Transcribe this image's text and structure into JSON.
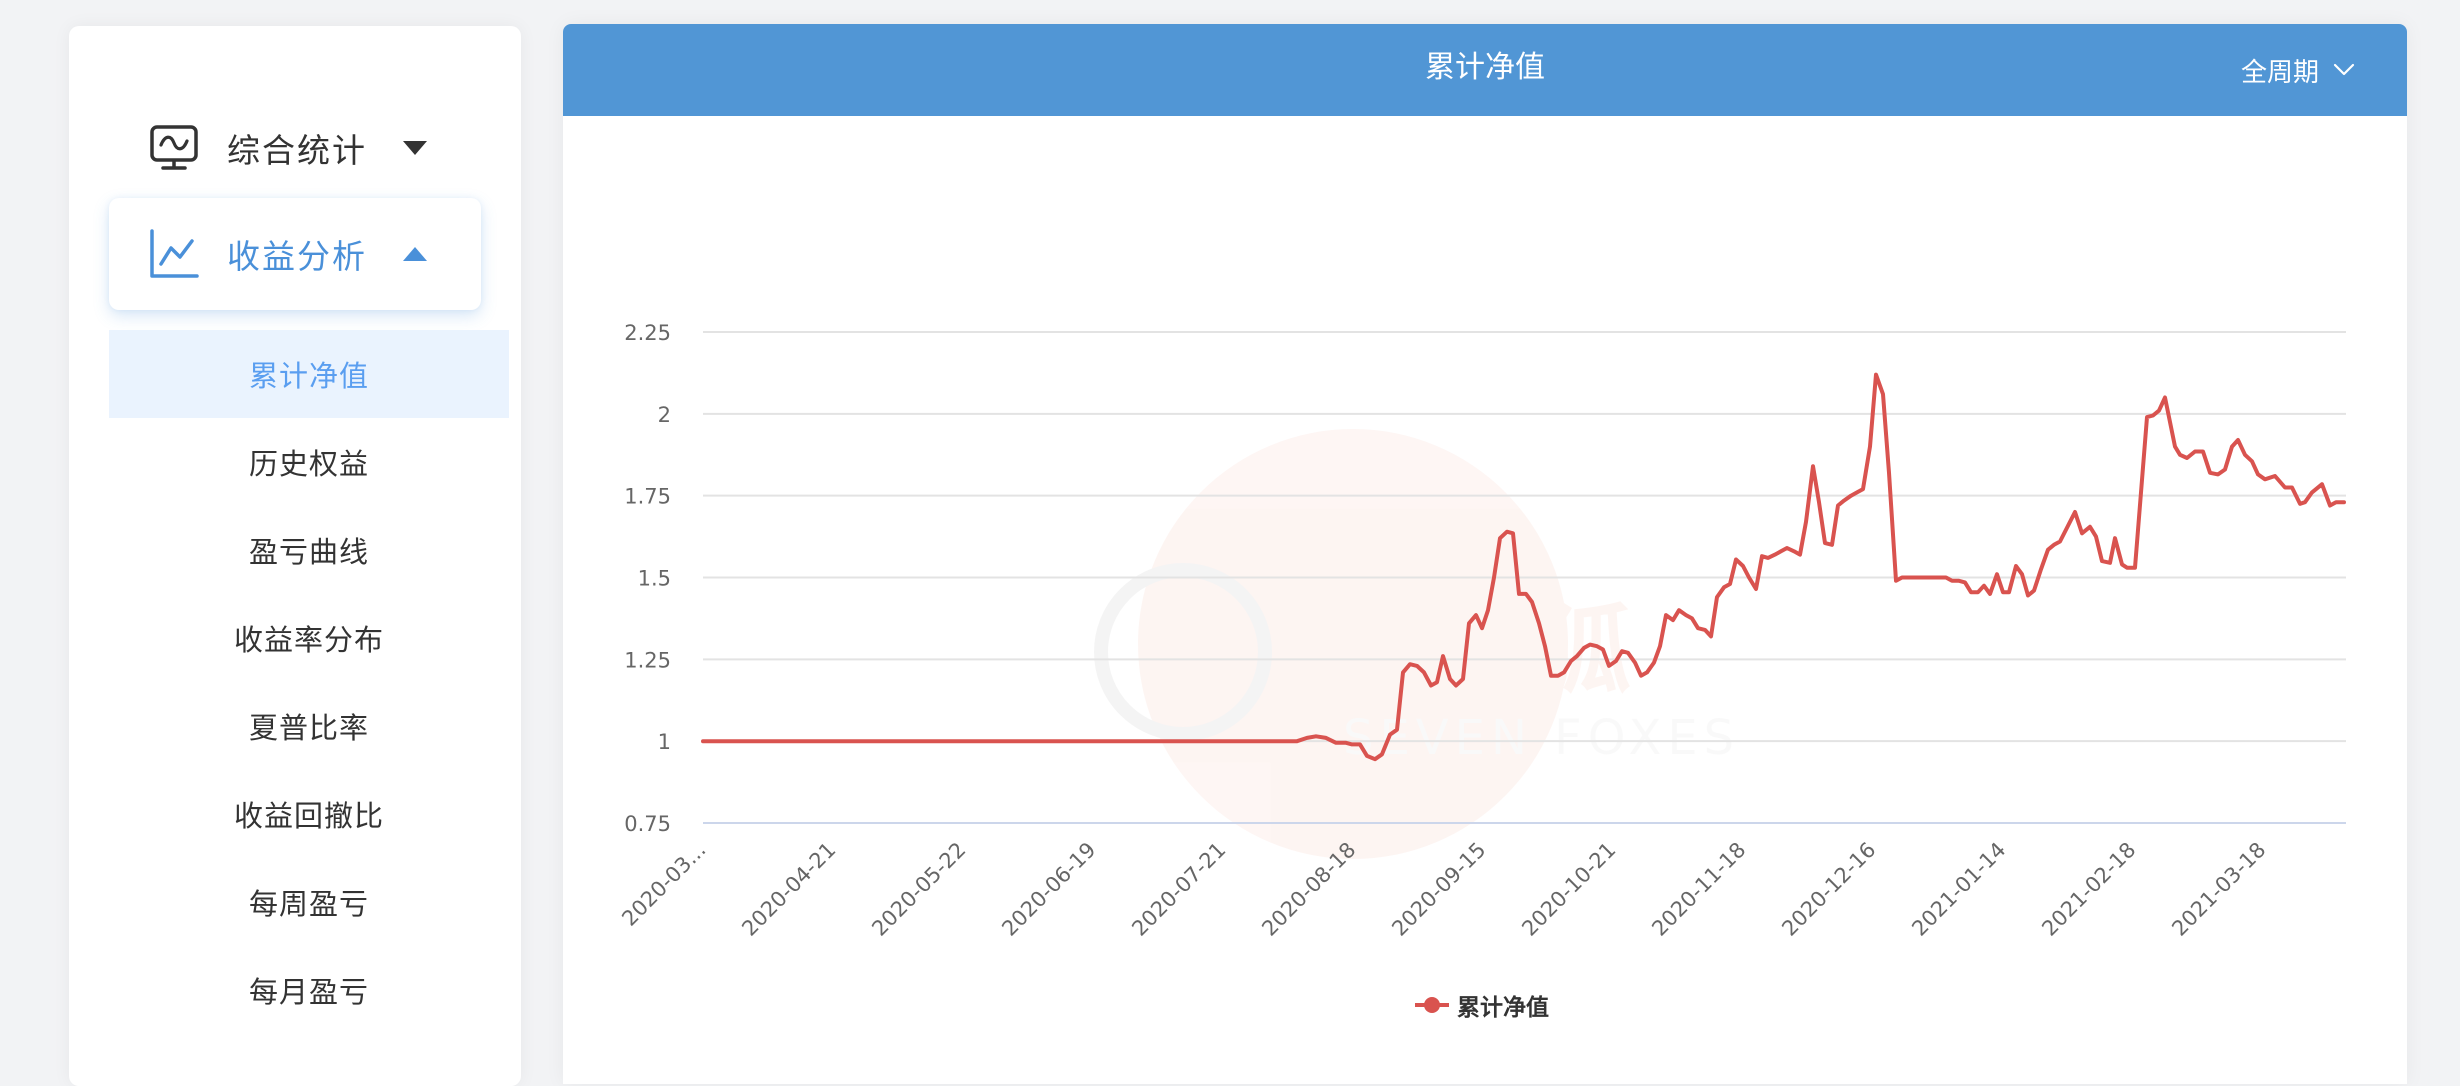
{
  "sidebar": {
    "groups": [
      {
        "label": "综合统计",
        "icon": "monitor-wave-icon",
        "expanded": false
      },
      {
        "label": "收益分析",
        "icon": "line-chart-icon",
        "expanded": true
      }
    ],
    "items": [
      {
        "label": "累计净值",
        "active": true
      },
      {
        "label": "历史权益",
        "active": false
      },
      {
        "label": "盈亏曲线",
        "active": false
      },
      {
        "label": "收益率分布",
        "active": false
      },
      {
        "label": "夏普比率",
        "active": false
      },
      {
        "label": "收益回撤比",
        "active": false
      },
      {
        "label": "每周盈亏",
        "active": false
      },
      {
        "label": "每月盈亏",
        "active": false
      }
    ]
  },
  "card": {
    "title": "累计净值",
    "period_select": {
      "value": "全周期",
      "icon": "chevron-down-icon"
    }
  },
  "colors": {
    "header": "#5196d5",
    "accent": "#4a90d9",
    "series": "#d9534f",
    "active_bg": "#eaf3fe",
    "grid": "#e3e3e3",
    "axis": "#ccd6eb"
  },
  "watermark": {
    "text_cn": "七尾狐",
    "text_en": "SEVEN FOXES"
  },
  "chart_data": {
    "type": "line",
    "title": "累计净值",
    "xlabel": "",
    "ylabel": "",
    "ylim": [
      0.75,
      2.25
    ],
    "yticks": [
      0.75,
      1,
      1.25,
      1.5,
      1.75,
      2,
      2.25
    ],
    "ytick_labels": [
      "0.75",
      "1",
      "1.25",
      "1.5",
      "1.75",
      "2",
      "2.25"
    ],
    "xtick_labels": [
      "2020-03...",
      "2020-04-21",
      "2020-05-22",
      "2020-06-19",
      "2020-07-21",
      "2020-08-18",
      "2020-09-15",
      "2020-10-21",
      "2020-11-18",
      "2020-12-16",
      "2021-01-14",
      "2021-02-18",
      "2021-03-18"
    ],
    "grid": true,
    "legend": {
      "position": "bottom",
      "entries": [
        "累计净值"
      ]
    },
    "series": [
      {
        "name": "累计净值",
        "color": "#d9534f",
        "points_x_px_offset_over_plot_width_1643": true,
        "points": [
          [
            0,
            1.0
          ],
          [
            594,
            1.0
          ],
          [
            604,
            1.01
          ],
          [
            613,
            1.015
          ],
          [
            623,
            1.01
          ],
          [
            633,
            0.995
          ],
          [
            643,
            0.995
          ],
          [
            649,
            0.99
          ],
          [
            657,
            0.99
          ],
          [
            664,
            0.955
          ],
          [
            672,
            0.945
          ],
          [
            679,
            0.96
          ],
          [
            687,
            1.02
          ],
          [
            694,
            1.035
          ],
          [
            700,
            1.21
          ],
          [
            707,
            1.235
          ],
          [
            714,
            1.23
          ],
          [
            721,
            1.21
          ],
          [
            728,
            1.17
          ],
          [
            734,
            1.18
          ],
          [
            740,
            1.26
          ],
          [
            747,
            1.19
          ],
          [
            753,
            1.17
          ],
          [
            760,
            1.19
          ],
          [
            766,
            1.36
          ],
          [
            773,
            1.385
          ],
          [
            779,
            1.345
          ],
          [
            785,
            1.4
          ],
          [
            791,
            1.5
          ],
          [
            797,
            1.62
          ],
          [
            804,
            1.64
          ],
          [
            810,
            1.635
          ],
          [
            816,
            1.45
          ],
          [
            823,
            1.45
          ],
          [
            829,
            1.425
          ],
          [
            836,
            1.36
          ],
          [
            842,
            1.29
          ],
          [
            848,
            1.2
          ],
          [
            855,
            1.2
          ],
          [
            861,
            1.21
          ],
          [
            868,
            1.245
          ],
          [
            874,
            1.26
          ],
          [
            881,
            1.285
          ],
          [
            887,
            1.295
          ],
          [
            894,
            1.29
          ],
          [
            900,
            1.28
          ],
          [
            906,
            1.23
          ],
          [
            913,
            1.245
          ],
          [
            919,
            1.275
          ],
          [
            925,
            1.27
          ],
          [
            932,
            1.24
          ],
          [
            938,
            1.2
          ],
          [
            944,
            1.21
          ],
          [
            951,
            1.24
          ],
          [
            957,
            1.29
          ],
          [
            963,
            1.385
          ],
          [
            970,
            1.37
          ],
          [
            976,
            1.4
          ],
          [
            983,
            1.385
          ],
          [
            989,
            1.375
          ],
          [
            995,
            1.345
          ],
          [
            1002,
            1.34
          ],
          [
            1008,
            1.32
          ],
          [
            1014,
            1.44
          ],
          [
            1021,
            1.47
          ],
          [
            1027,
            1.48
          ],
          [
            1033,
            1.555
          ],
          [
            1040,
            1.535
          ],
          [
            1046,
            1.5
          ],
          [
            1053,
            1.465
          ],
          [
            1059,
            1.565
          ],
          [
            1065,
            1.56
          ],
          [
            1072,
            1.57
          ],
          [
            1078,
            1.58
          ],
          [
            1084,
            1.59
          ],
          [
            1091,
            1.58
          ],
          [
            1097,
            1.57
          ],
          [
            1103,
            1.67
          ],
          [
            1110,
            1.84
          ],
          [
            1116,
            1.73
          ],
          [
            1122,
            1.605
          ],
          [
            1129,
            1.6
          ],
          [
            1135,
            1.72
          ],
          [
            1141,
            1.735
          ],
          [
            1148,
            1.75
          ],
          [
            1154,
            1.76
          ],
          [
            1160,
            1.77
          ],
          [
            1167,
            1.9
          ],
          [
            1173,
            2.12
          ],
          [
            1180,
            2.06
          ],
          [
            1186,
            1.82
          ],
          [
            1193,
            1.49
          ],
          [
            1199,
            1.5
          ],
          [
            1205,
            1.5
          ],
          [
            1212,
            1.5
          ],
          [
            1218,
            1.5
          ],
          [
            1224,
            1.5
          ],
          [
            1231,
            1.5
          ],
          [
            1237,
            1.5
          ],
          [
            1243,
            1.5
          ],
          [
            1249,
            1.49
          ],
          [
            1256,
            1.49
          ],
          [
            1262,
            1.485
          ],
          [
            1268,
            1.455
          ],
          [
            1275,
            1.455
          ],
          [
            1281,
            1.475
          ],
          [
            1287,
            1.45
          ],
          [
            1294,
            1.51
          ],
          [
            1300,
            1.455
          ],
          [
            1306,
            1.455
          ],
          [
            1313,
            1.535
          ],
          [
            1319,
            1.51
          ],
          [
            1325,
            1.445
          ],
          [
            1331,
            1.46
          ],
          [
            1338,
            1.525
          ],
          [
            1345,
            1.585
          ],
          [
            1351,
            1.6
          ],
          [
            1357,
            1.61
          ],
          [
            1372,
            1.7
          ],
          [
            1379,
            1.635
          ],
          [
            1387,
            1.655
          ],
          [
            1393,
            1.625
          ],
          [
            1399,
            1.55
          ],
          [
            1407,
            1.545
          ],
          [
            1412,
            1.62
          ],
          [
            1419,
            1.54
          ],
          [
            1424,
            1.53
          ],
          [
            1432,
            1.53
          ],
          [
            1438,
            1.76
          ],
          [
            1444,
            1.99
          ],
          [
            1450,
            1.995
          ],
          [
            1456,
            2.01
          ],
          [
            1462,
            2.05
          ],
          [
            1472,
            1.9
          ],
          [
            1477,
            1.875
          ],
          [
            1484,
            1.865
          ],
          [
            1492,
            1.885
          ],
          [
            1500,
            1.885
          ],
          [
            1507,
            1.82
          ],
          [
            1515,
            1.815
          ],
          [
            1522,
            1.83
          ],
          [
            1529,
            1.9
          ],
          [
            1535,
            1.92
          ],
          [
            1542,
            1.875
          ],
          [
            1549,
            1.855
          ],
          [
            1555,
            1.815
          ],
          [
            1562,
            1.8
          ],
          [
            1572,
            1.81
          ],
          [
            1582,
            1.775
          ],
          [
            1589,
            1.775
          ],
          [
            1597,
            1.725
          ],
          [
            1602,
            1.73
          ],
          [
            1609,
            1.76
          ],
          [
            1619,
            1.785
          ],
          [
            1627,
            1.72
          ],
          [
            1633,
            1.73
          ],
          [
            1641,
            1.73
          ]
        ]
      }
    ]
  }
}
